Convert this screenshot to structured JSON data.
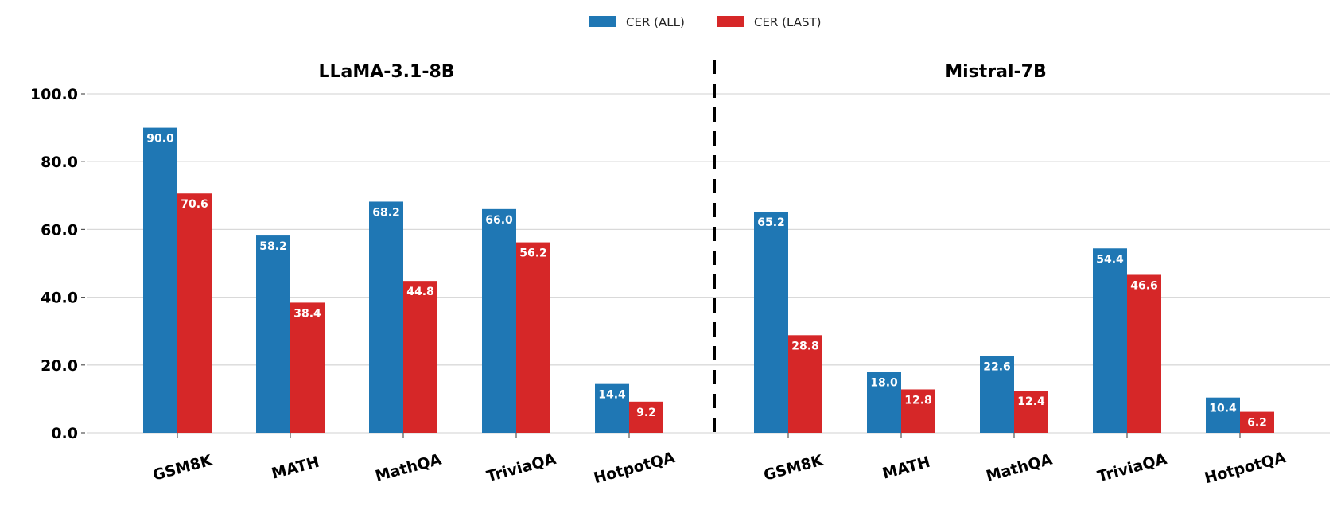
{
  "chart_data": {
    "type": "bar",
    "legend": [
      "CER (ALL)",
      "CER (LAST)"
    ],
    "legend_placement": "top-center",
    "colors": [
      "#1f77b4",
      "#d62728"
    ],
    "ylim": [
      0,
      100
    ],
    "yticks": [
      "0.0",
      "20.0",
      "40.0",
      "60.0",
      "80.0",
      "100.0"
    ],
    "grid": true,
    "panels": [
      {
        "title": "LLaMA-3.1-8B",
        "categories": [
          "GSM8K",
          "MATH",
          "MathQA",
          "TriviaQA",
          "HotpotQA"
        ],
        "series": [
          {
            "name": "CER (ALL)",
            "values": [
              90.0,
              58.2,
              68.2,
              66.0,
              14.4
            ],
            "labels": [
              "90.0",
              "58.2",
              "68.2",
              "66.0",
              "14.4"
            ]
          },
          {
            "name": "CER (LAST)",
            "values": [
              70.6,
              38.4,
              44.8,
              56.2,
              9.2
            ],
            "labels": [
              "70.6",
              "38.4",
              "44.8",
              "56.2",
              "9.2"
            ]
          }
        ]
      },
      {
        "title": "Mistral-7B",
        "categories": [
          "GSM8K",
          "MATH",
          "MathQA",
          "TriviaQA",
          "HotpotQA"
        ],
        "series": [
          {
            "name": "CER (ALL)",
            "values": [
              65.2,
              18.0,
              22.6,
              54.4,
              10.4
            ],
            "labels": [
              "65.2",
              "18.0",
              "22.6",
              "54.4",
              "10.4"
            ]
          },
          {
            "name": "CER (LAST)",
            "values": [
              28.8,
              12.8,
              12.4,
              46.6,
              6.2
            ],
            "labels": [
              "28.8",
              "12.8",
              "12.4",
              "46.6",
              "6.2"
            ]
          }
        ]
      }
    ]
  }
}
